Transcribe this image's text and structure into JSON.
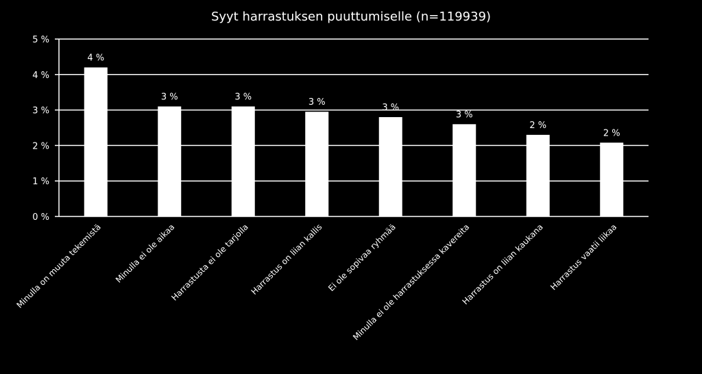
{
  "chart_data": {
    "type": "bar",
    "title": "Syyt harrastuksen puuttumiselle (n=119939)",
    "xlabel": "",
    "ylabel": "",
    "ylim": [
      0,
      5
    ],
    "yticks": [
      0,
      1,
      2,
      3,
      4,
      5
    ],
    "ytick_labels": [
      "0 %",
      "1 %",
      "2 %",
      "3 %",
      "4 %",
      "5 %"
    ],
    "grid": true,
    "legend": "none",
    "categories": [
      "Minulla on muuta tekemistä",
      "Minulla ei ole aikaa",
      "Harrastusta ei ole tarjolla",
      "Harrastus on liian kallis",
      "Ei ole sopivaa ryhmää",
      "Minulla ei ole harrastuksessa kavereita",
      "Harrastus on liian kaukana",
      "Harrastus vaatii liikaa"
    ],
    "values": [
      4.2,
      3.1,
      3.1,
      2.95,
      2.8,
      2.6,
      2.3,
      2.08
    ],
    "data_labels": [
      "4 %",
      "3 %",
      "3 %",
      "3 %",
      "3 %",
      "3 %",
      "2 %",
      "2 %"
    ],
    "colors": {
      "background": "#000000",
      "bar": "#ffffff",
      "grid": "#ffffff",
      "text": "#ffffff"
    }
  }
}
